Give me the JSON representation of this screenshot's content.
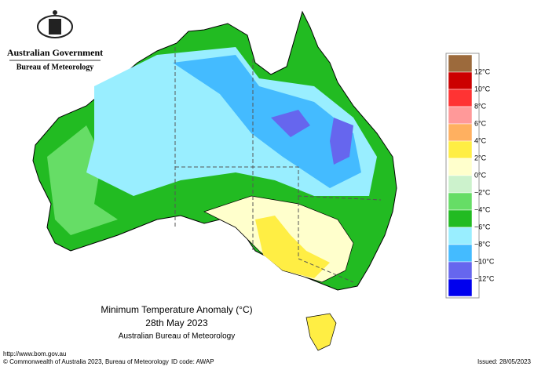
{
  "header": {
    "government": "Australian Government",
    "bureau": "Bureau of Meteorology"
  },
  "title": {
    "line1": "Minimum Temperature Anomaly (°C)",
    "line2": "28th May 2023",
    "line3": "Australian Bureau of Meteorology"
  },
  "legend": {
    "labels": [
      "12°C",
      "10°C",
      "8°C",
      "6°C",
      "4°C",
      "2°C",
      "0°C",
      "−2°C",
      "−4°C",
      "−6°C",
      "−8°C",
      "−10°C",
      "−12°C"
    ],
    "colors": [
      "#9c6a3c",
      "#cc0000",
      "#ff3333",
      "#ff9999",
      "#ffb060",
      "#ffee44",
      "#ffffcc",
      "#ccf2cc",
      "#66dd66",
      "#22bb22",
      "#99eeff",
      "#44bbff",
      "#6666ee",
      "#0000ee"
    ]
  },
  "footer": {
    "url": "http://www.bom.gov.au",
    "copyright": "© Commonwealth of Australia 2023, Bureau of Meteorology",
    "id_code": "ID code: AWAP",
    "issued": "Issued: 28/05/2023"
  }
}
